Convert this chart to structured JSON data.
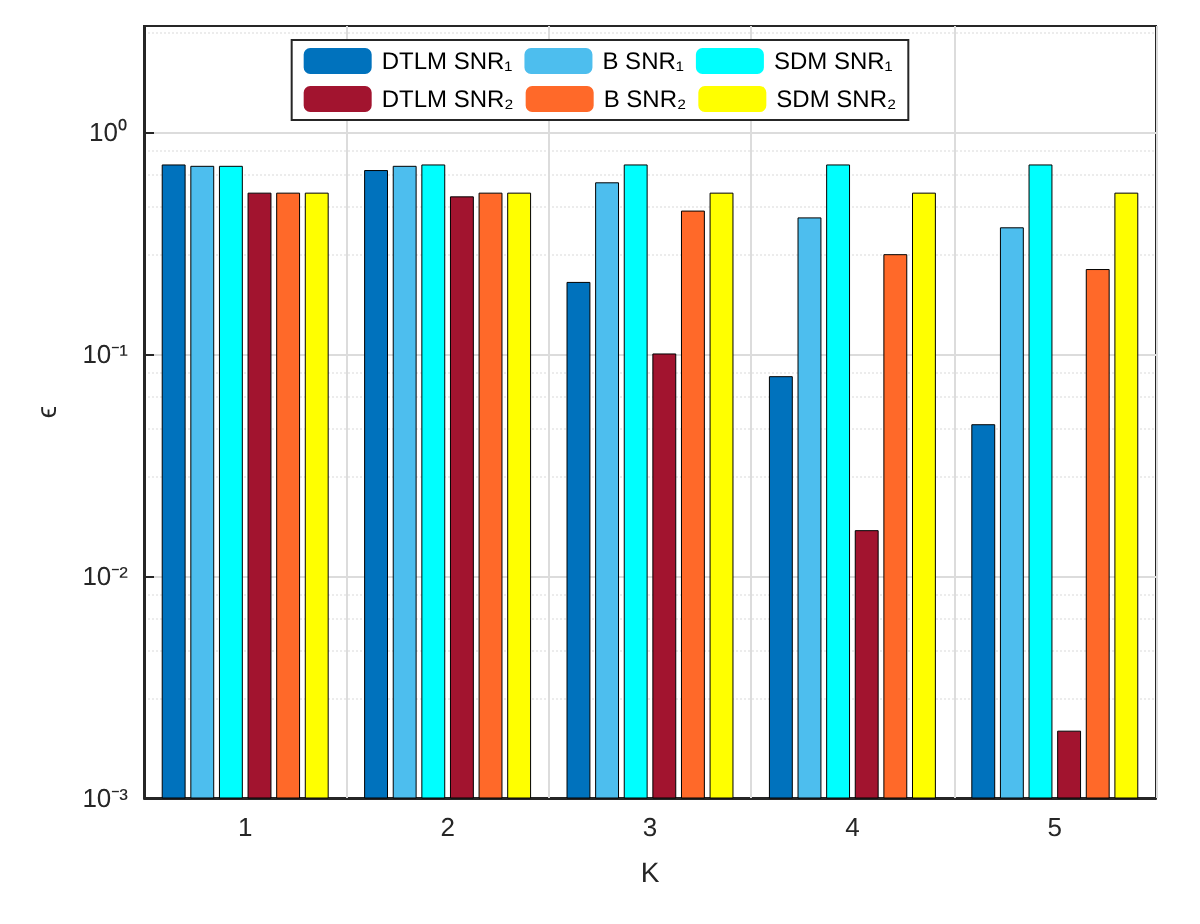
{
  "chart_data": {
    "type": "bar",
    "xlabel": "K",
    "ylabel": "ϵ",
    "categories": [
      "1",
      "2",
      "3",
      "4",
      "5"
    ],
    "series": [
      {
        "name": "DTLM SNR₁",
        "color": "#0072bd",
        "values": [
          0.71,
          0.67,
          0.21,
          0.079,
          0.048
        ]
      },
      {
        "name": "B SNR₁",
        "color": "#4dbeee",
        "values": [
          0.7,
          0.7,
          0.59,
          0.41,
          0.37
        ]
      },
      {
        "name": "SDM SNR₁",
        "color": "#00ffff",
        "values": [
          0.7,
          0.71,
          0.71,
          0.71,
          0.71
        ]
      },
      {
        "name": "DTLM SNR₂",
        "color": "#a2142f",
        "values": [
          0.53,
          0.51,
          0.1,
          0.016,
          0.002
        ]
      },
      {
        "name": "B SNR₂",
        "color": "#ff6929",
        "values": [
          0.53,
          0.53,
          0.44,
          0.28,
          0.24
        ]
      },
      {
        "name": "SDM SNR₂",
        "color": "#ffff00",
        "values": [
          0.53,
          0.53,
          0.53,
          0.53,
          0.53
        ]
      }
    ],
    "log": "y",
    "ylim": [
      0.001,
      3
    ],
    "yticks": [
      {
        "value": 0.001,
        "label": "10⁻³"
      },
      {
        "value": 0.01,
        "label": "10⁻²"
      },
      {
        "value": 0.1,
        "label": "10⁻¹"
      },
      {
        "value": 1,
        "label": "10⁰"
      }
    ],
    "grid": true,
    "legend": "top"
  }
}
